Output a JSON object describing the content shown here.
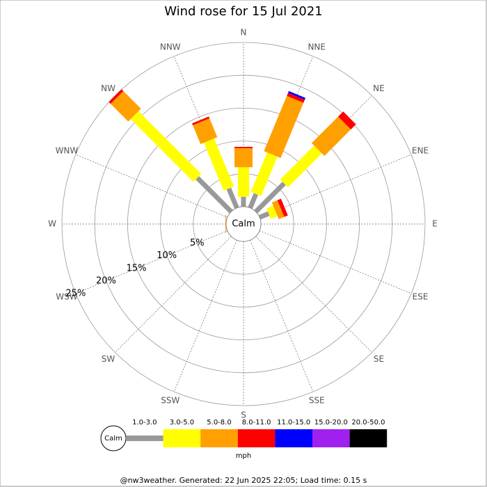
{
  "chart_data": {
    "type": "windrose",
    "title": "Wind rose for 15 Jul 2021",
    "directions": [
      "N",
      "NNE",
      "NE",
      "ENE",
      "E",
      "ESE",
      "SE",
      "SSE",
      "S",
      "SSW",
      "SW",
      "WSW",
      "W",
      "WNW",
      "NW",
      "NNW"
    ],
    "calm_label": "Calm",
    "unit_label": "mph",
    "rlim": [
      0,
      25
    ],
    "rticks": [
      {
        "value": 5,
        "label": "5%"
      },
      {
        "value": 10,
        "label": "10%"
      },
      {
        "value": 15,
        "label": "15%"
      },
      {
        "value": 20,
        "label": "20%"
      },
      {
        "value": 25,
        "label": "25%"
      }
    ],
    "series": [
      {
        "name": "1.0-3.0",
        "color": "#999999",
        "values": [
          1.5,
          2.3,
          6.1,
          1.5,
          0,
          0,
          0,
          0,
          0,
          0,
          0,
          0,
          0,
          0,
          7.3,
          3.2
        ]
      },
      {
        "name": "3.0-5.0",
        "color": "#ffff00",
        "values": [
          4.5,
          6.5,
          7.3,
          1.1,
          0,
          0,
          0,
          0,
          0,
          0,
          0,
          0,
          0,
          0,
          13.5,
          7.9
        ]
      },
      {
        "name": "5.0-8.0",
        "color": "#ffa000",
        "values": [
          2.9,
          9.1,
          5.7,
          0.9,
          0,
          0,
          0,
          0,
          0,
          0,
          0,
          0,
          0.1,
          0,
          3.8,
          3.1
        ]
      },
      {
        "name": "8.0-11.0",
        "color": "#ff0000",
        "values": [
          0.2,
          0.5,
          1.1,
          0.6,
          0,
          0,
          0,
          0,
          0,
          0,
          0,
          0,
          0,
          0,
          0.4,
          0.3
        ]
      },
      {
        "name": "11.0-15.0",
        "color": "#0000ff",
        "values": [
          0,
          0.3,
          0,
          0,
          0,
          0,
          0,
          0,
          0,
          0,
          0,
          0,
          0,
          0,
          0,
          0
        ]
      },
      {
        "name": "15.0-20.0",
        "color": "#a020f0",
        "values": [
          0,
          0,
          0,
          0,
          0,
          0,
          0,
          0,
          0,
          0,
          0,
          0,
          0,
          0,
          0,
          0
        ]
      },
      {
        "name": "20.0-50.0",
        "color": "#000000",
        "values": [
          0,
          0,
          0,
          0,
          0,
          0,
          0,
          0,
          0,
          0,
          0,
          0,
          0,
          0,
          0,
          0
        ]
      }
    ],
    "footer": "@nw3weather. Generated: 22 Jun 2025 22:05; Load time: 0.15 s"
  }
}
